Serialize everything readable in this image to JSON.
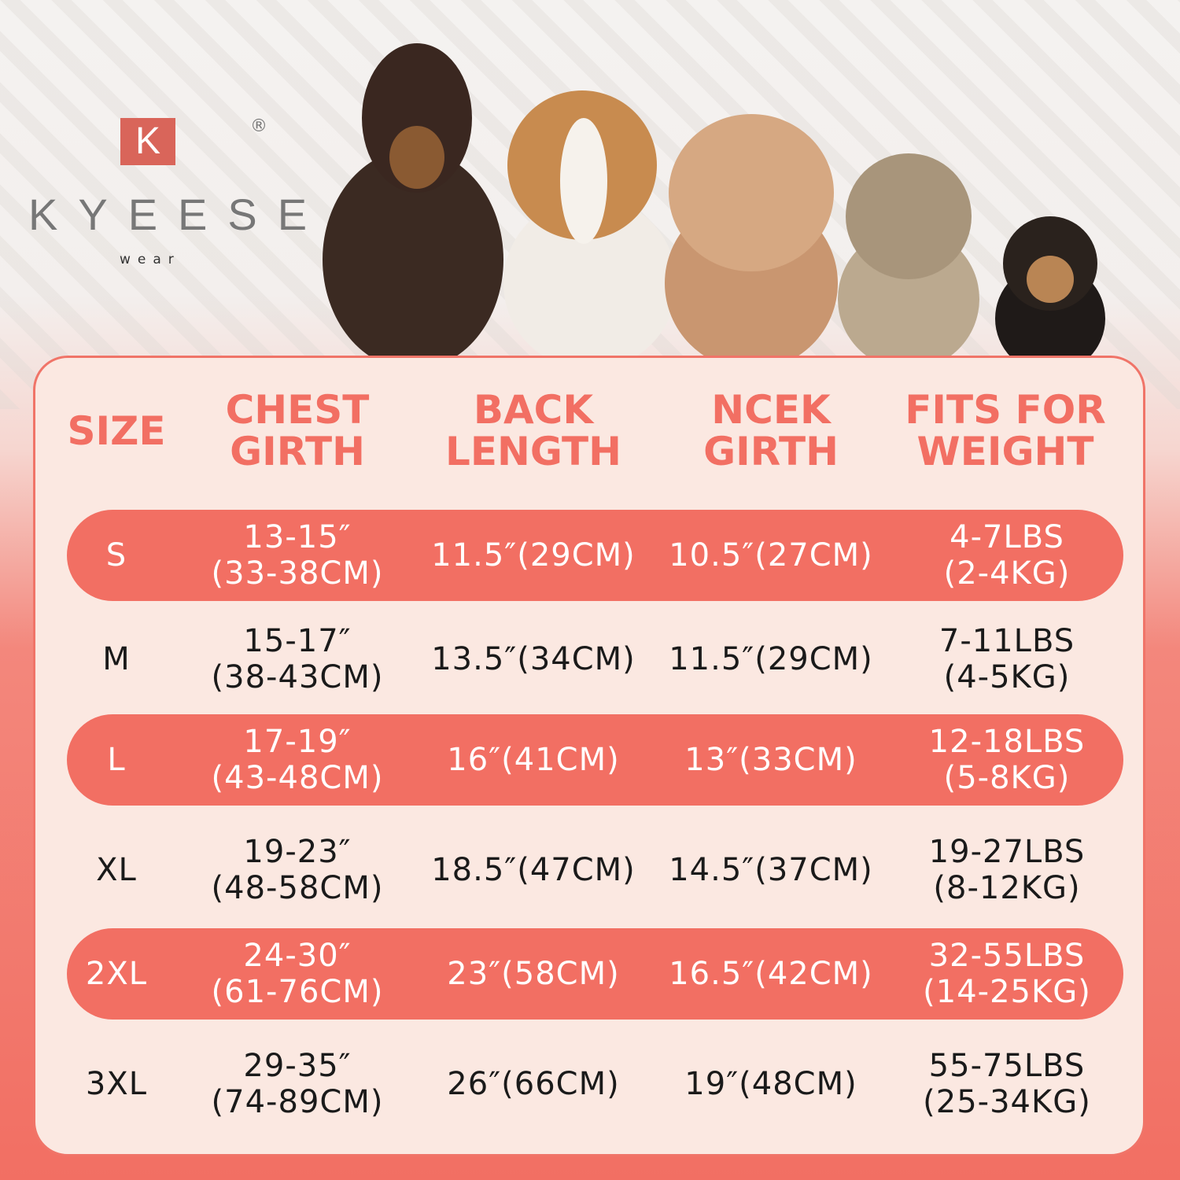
{
  "brand": {
    "logo_letter": "K",
    "name": "KYEESE",
    "sub": "wear",
    "registered": "®"
  },
  "colors": {
    "accent": "#f26f63",
    "panel": "#fbe8e1",
    "text": "#1a1a1a"
  },
  "headers": [
    "SIZE",
    [
      "CHEST",
      "GIRTH"
    ],
    [
      "BACK",
      "LENGTH"
    ],
    [
      "NCEK",
      "GIRTH"
    ],
    [
      "FITS FOR",
      "WEIGHT"
    ]
  ],
  "rows": [
    {
      "size": "S",
      "chest": [
        "13-15″",
        "(33-38CM)"
      ],
      "back": "11.5″(29CM)",
      "neck": "10.5″(27CM)",
      "weight": [
        "4-7LBS",
        "(2-4KG)"
      ],
      "highlight": true
    },
    {
      "size": "M",
      "chest": [
        "15-17″",
        "(38-43CM)"
      ],
      "back": "13.5″(34CM)",
      "neck": "11.5″(29CM)",
      "weight": [
        "7-11LBS",
        "(4-5KG)"
      ],
      "highlight": false
    },
    {
      "size": "L",
      "chest": [
        "17-19″",
        "(43-48CM)"
      ],
      "back": "16″(41CM)",
      "neck": "13″(33CM)",
      "weight": [
        "12-18LBS",
        "(5-8KG)"
      ],
      "highlight": true
    },
    {
      "size": "XL",
      "chest": [
        "19-23″",
        "(48-58CM)"
      ],
      "back": "18.5″(47CM)",
      "neck": "14.5″(37CM)",
      "weight": [
        "19-27LBS",
        "(8-12KG)"
      ],
      "highlight": false
    },
    {
      "size": "2XL",
      "chest": [
        "24-30″",
        "(61-76CM)"
      ],
      "back": "23″(58CM)",
      "neck": "16.5″(42CM)",
      "weight": [
        "32-55LBS",
        "(14-25KG)"
      ],
      "highlight": true
    },
    {
      "size": "3XL",
      "chest": [
        "29-35″",
        "(74-89CM)"
      ],
      "back": "26″(66CM)",
      "neck": "19″(48CM)",
      "weight": [
        "55-75LBS",
        "(25-34KG)"
      ],
      "highlight": false
    }
  ]
}
